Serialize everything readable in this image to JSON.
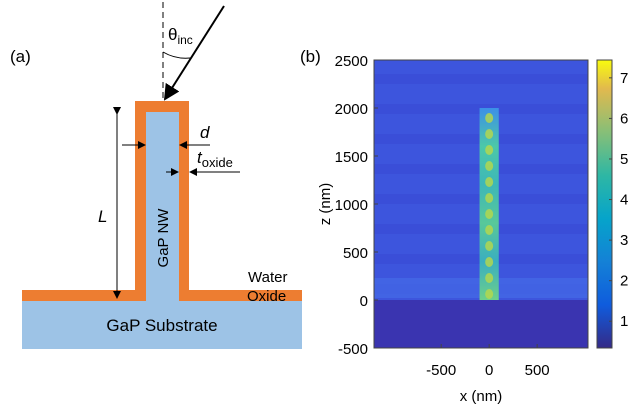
{
  "panel_a": {
    "label": "(a)",
    "theta": "θ",
    "theta_sub": "inc",
    "d": "d",
    "t": "t",
    "t_sub": "oxide",
    "L": "L",
    "nanowire": "GaP NW",
    "water": "Water",
    "oxide": "Oxide",
    "substrate": "GaP Substrate"
  },
  "panel_b": {
    "label": "(b)",
    "xlabel": "x (nm)",
    "ylabel": "z (nm)",
    "xlim": [
      -1200,
      1030
    ],
    "ylim": [
      -500,
      2500
    ],
    "xticks": [
      -500,
      0,
      500
    ],
    "yticks": [
      -500,
      0,
      500,
      1000,
      1500,
      2000,
      2500
    ],
    "clim": [
      0.34,
      7.44
    ],
    "cticks": [
      1,
      2,
      3,
      4,
      5,
      6,
      7
    ]
  }
}
